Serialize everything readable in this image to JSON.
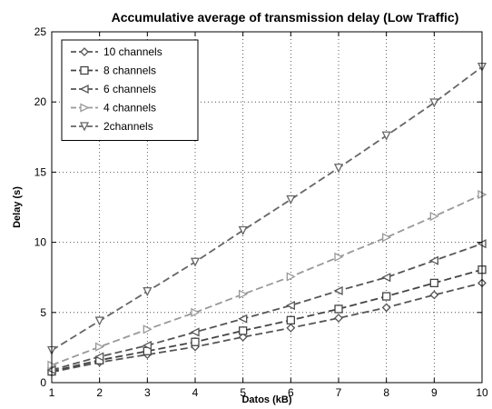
{
  "chart_data": {
    "type": "line",
    "title": "Accumulative average of transmission delay (Low Traffic)",
    "xlabel": "Datos (kB)",
    "ylabel": "Delay (s)",
    "xlim": [
      1,
      10
    ],
    "ylim": [
      0,
      25
    ],
    "xticks": [
      "1",
      "2",
      "3",
      "4",
      "5",
      "6",
      "7",
      "8",
      "9",
      "10"
    ],
    "yticks": [
      "0",
      "5",
      "10",
      "15",
      "20",
      "25"
    ],
    "grid": true,
    "legend_position": "top-left",
    "x": [
      1,
      2,
      3,
      4,
      5,
      6,
      7,
      8,
      9,
      10
    ],
    "series": [
      {
        "name": "10 channels",
        "marker": "diamond",
        "color": "#555555",
        "values": [
          0.75,
          1.45,
          2.0,
          2.55,
          3.25,
          3.9,
          4.6,
          5.35,
          6.25,
          7.1
        ]
      },
      {
        "name": "8 channels",
        "marker": "square",
        "color": "#444444",
        "values": [
          0.8,
          1.6,
          2.25,
          2.9,
          3.7,
          4.45,
          5.25,
          6.15,
          7.1,
          8.05
        ]
      },
      {
        "name": "6 channels",
        "marker": "triangle-left",
        "color": "#555555",
        "values": [
          0.9,
          1.85,
          2.65,
          3.6,
          4.55,
          5.5,
          6.55,
          7.5,
          8.7,
          9.9
        ]
      },
      {
        "name": "4 channels",
        "marker": "triangle-right",
        "color": "#999999",
        "values": [
          1.25,
          2.55,
          3.8,
          5.0,
          6.3,
          7.55,
          8.95,
          10.35,
          11.85,
          13.4
        ]
      },
      {
        "name": "2channels",
        "marker": "triangle-down",
        "color": "#666666",
        "values": [
          2.3,
          4.4,
          6.5,
          8.6,
          10.85,
          13.05,
          15.3,
          17.6,
          19.95,
          22.5
        ]
      }
    ]
  }
}
